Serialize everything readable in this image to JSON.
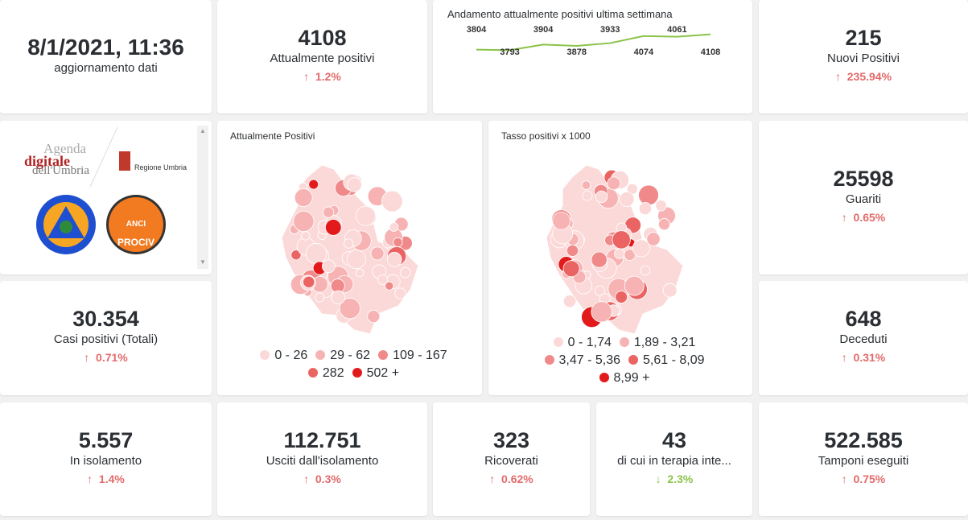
{
  "update": {
    "value": "8/1/2021, 11:36",
    "label": "aggiornamento dati"
  },
  "kpis": {
    "attuali": {
      "value": "4108",
      "label": "Attualmente positivi",
      "change": "1.2%",
      "dir": "up"
    },
    "nuovi": {
      "value": "215",
      "label": "Nuovi Positivi",
      "change": "235.94%",
      "dir": "up"
    },
    "guariti": {
      "value": "25598",
      "label": "Guariti",
      "change": "0.65%",
      "dir": "up"
    },
    "casi": {
      "value": "30.354",
      "label": "Casi positivi (Totali)",
      "change": "0.71%",
      "dir": "up"
    },
    "deceduti": {
      "value": "648",
      "label": "Deceduti",
      "change": "0.31%",
      "dir": "up"
    },
    "isolamento": {
      "value": "5.557",
      "label": "In isolamento",
      "change": "1.4%",
      "dir": "up"
    },
    "usciti": {
      "value": "112.751",
      "label": "Usciti dall'isolamento",
      "change": "0.3%",
      "dir": "up"
    },
    "ricoverati": {
      "value": "323",
      "label": "Ricoverati",
      "change": "0.62%",
      "dir": "up"
    },
    "terapia": {
      "value": "43",
      "label": "di cui in terapia inte...",
      "change": "2.3%",
      "dir": "down"
    },
    "tamponi": {
      "value": "522.585",
      "label": "Tamponi eseguiti",
      "change": "0.75%",
      "dir": "up"
    }
  },
  "arrows": {
    "up": "↑",
    "down": "↓"
  },
  "chart_data": {
    "type": "line",
    "title": "Andamento attualmente positivi ultima settimana",
    "values": [
      3804,
      3793,
      3904,
      3878,
      3933,
      4074,
      4061,
      4108
    ],
    "color": "#8bc34a"
  },
  "logos": {
    "agenda": "Agenda digitale dell'Umbria",
    "regione": "Regione Umbria",
    "protezione": "Protezione Civile",
    "anci": "ANCI UMBRIA PROCIV"
  },
  "map1": {
    "title": "Attualmente Positivi",
    "legend": [
      {
        "label": "0 - 26",
        "color": "#fcd9d9"
      },
      {
        "label": "29 - 62",
        "color": "#f7b3b3"
      },
      {
        "label": "109 - 167",
        "color": "#f08a8a"
      },
      {
        "label": "282",
        "color": "#eb6464"
      },
      {
        "label": "502 +",
        "color": "#e31a1c"
      }
    ]
  },
  "map2": {
    "title": "Tasso positivi x 1000",
    "legend": [
      {
        "label": "0 - 1,74",
        "color": "#fcd9d9"
      },
      {
        "label": "1,89 - 3,21",
        "color": "#f7b3b3"
      },
      {
        "label": "3,47 - 5,36",
        "color": "#f08a8a"
      },
      {
        "label": "5,61 - 8,09",
        "color": "#eb6464"
      },
      {
        "label": "8,99 +",
        "color": "#e31a1c"
      }
    ]
  }
}
